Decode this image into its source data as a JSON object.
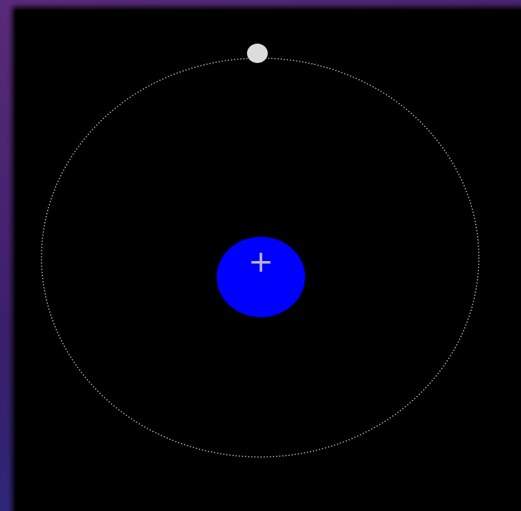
{
  "nucleus": {
    "label": "+"
  }
}
